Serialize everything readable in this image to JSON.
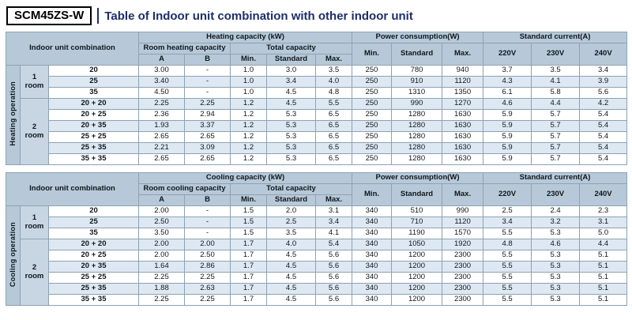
{
  "title": {
    "model": "SCM45ZS-W",
    "text": "Table of Indoor unit combination with other indoor unit"
  },
  "colors": {
    "header_bg": "#b7c9d9",
    "row_alt_bg": "#dde8f2",
    "room_cell_bg": "#c8d6e3",
    "border": "#8da2b2",
    "title_color": "#1c2e6b",
    "model_box_border": "#000000"
  },
  "columns": {
    "combination": "Indoor unit combination",
    "total_capacity": "Total capacity",
    "a": "A",
    "b": "B",
    "min": "Min.",
    "standard": "Standard",
    "max": "Max.",
    "power_min": "Min.",
    "power_standard": "Standard",
    "power_max": "Max.",
    "v220": "220V",
    "v230": "230V",
    "v240": "240V"
  },
  "tables": [
    {
      "operation_label": "Heating operation",
      "capacity_header": "Heating capacity (kW)",
      "room_capacity_header": "Room heating capacity",
      "power_header": "Power consumption(W)",
      "current_header": "Standard current(A)",
      "room_groups": [
        {
          "label": "1 room",
          "start": 0,
          "rows": 3
        },
        {
          "label": "2 room",
          "start": 3,
          "rows": 6
        }
      ],
      "rows": [
        {
          "combo": "20",
          "values": [
            "3.00",
            "-",
            "1.0",
            "3.0",
            "3.5",
            "250",
            "780",
            "940",
            "3.7",
            "3.5",
            "3.4"
          ]
        },
        {
          "combo": "25",
          "values": [
            "3.40",
            "-",
            "1.0",
            "3.4",
            "4.0",
            "250",
            "910",
            "1120",
            "4.3",
            "4.1",
            "3.9"
          ]
        },
        {
          "combo": "35",
          "values": [
            "4.50",
            "-",
            "1.0",
            "4.5",
            "4.8",
            "250",
            "1310",
            "1350",
            "6.1",
            "5.8",
            "5.6"
          ]
        },
        {
          "combo": "20 + 20",
          "values": [
            "2.25",
            "2.25",
            "1.2",
            "4.5",
            "5.5",
            "250",
            "990",
            "1270",
            "4.6",
            "4.4",
            "4.2"
          ]
        },
        {
          "combo": "20 + 25",
          "values": [
            "2.36",
            "2.94",
            "1.2",
            "5.3",
            "6.5",
            "250",
            "1280",
            "1630",
            "5.9",
            "5.7",
            "5.4"
          ]
        },
        {
          "combo": "20 + 35",
          "values": [
            "1.93",
            "3.37",
            "1.2",
            "5.3",
            "6.5",
            "250",
            "1280",
            "1630",
            "5.9",
            "5.7",
            "5.4"
          ]
        },
        {
          "combo": "25 + 25",
          "values": [
            "2.65",
            "2.65",
            "1.2",
            "5.3",
            "6.5",
            "250",
            "1280",
            "1630",
            "5.9",
            "5.7",
            "5.4"
          ]
        },
        {
          "combo": "25 + 35",
          "values": [
            "2.21",
            "3.09",
            "1.2",
            "5.3",
            "6.5",
            "250",
            "1280",
            "1630",
            "5.9",
            "5.7",
            "5.4"
          ]
        },
        {
          "combo": "35 + 35",
          "values": [
            "2.65",
            "2.65",
            "1.2",
            "5.3",
            "6.5",
            "250",
            "1280",
            "1630",
            "5.9",
            "5.7",
            "5.4"
          ]
        }
      ]
    },
    {
      "operation_label": "Cooling operation",
      "capacity_header": "Cooling capacity (kW)",
      "room_capacity_header": "Room cooling capacity",
      "power_header": "Power consumption(W)",
      "current_header": "Standard current(A)",
      "room_groups": [
        {
          "label": "1 room",
          "start": 0,
          "rows": 3
        },
        {
          "label": "2 room",
          "start": 3,
          "rows": 6
        }
      ],
      "rows": [
        {
          "combo": "20",
          "values": [
            "2.00",
            "-",
            "1.5",
            "2.0",
            "3.1",
            "340",
            "510",
            "990",
            "2.5",
            "2.4",
            "2.3"
          ]
        },
        {
          "combo": "25",
          "values": [
            "2.50",
            "-",
            "1.5",
            "2.5",
            "3.4",
            "340",
            "710",
            "1120",
            "3.4",
            "3.2",
            "3.1"
          ]
        },
        {
          "combo": "35",
          "values": [
            "3.50",
            "-",
            "1.5",
            "3.5",
            "4.1",
            "340",
            "1190",
            "1570",
            "5.5",
            "5.3",
            "5.0"
          ]
        },
        {
          "combo": "20 + 20",
          "values": [
            "2.00",
            "2.00",
            "1.7",
            "4.0",
            "5.4",
            "340",
            "1050",
            "1920",
            "4.8",
            "4.6",
            "4.4"
          ]
        },
        {
          "combo": "20 + 25",
          "values": [
            "2.00",
            "2.50",
            "1.7",
            "4.5",
            "5.6",
            "340",
            "1200",
            "2300",
            "5.5",
            "5.3",
            "5.1"
          ]
        },
        {
          "combo": "20 + 35",
          "values": [
            "1.64",
            "2.86",
            "1.7",
            "4.5",
            "5.6",
            "340",
            "1200",
            "2300",
            "5.5",
            "5.3",
            "5.1"
          ]
        },
        {
          "combo": "25 + 25",
          "values": [
            "2.25",
            "2.25",
            "1.7",
            "4.5",
            "5.6",
            "340",
            "1200",
            "2300",
            "5.5",
            "5.3",
            "5.1"
          ]
        },
        {
          "combo": "25 + 35",
          "values": [
            "1.88",
            "2.63",
            "1.7",
            "4.5",
            "5.6",
            "340",
            "1200",
            "2300",
            "5.5",
            "5.3",
            "5.1"
          ]
        },
        {
          "combo": "35 + 35",
          "values": [
            "2.25",
            "2.25",
            "1.7",
            "4.5",
            "5.6",
            "340",
            "1200",
            "2300",
            "5.5",
            "5.3",
            "5.1"
          ]
        }
      ]
    }
  ]
}
